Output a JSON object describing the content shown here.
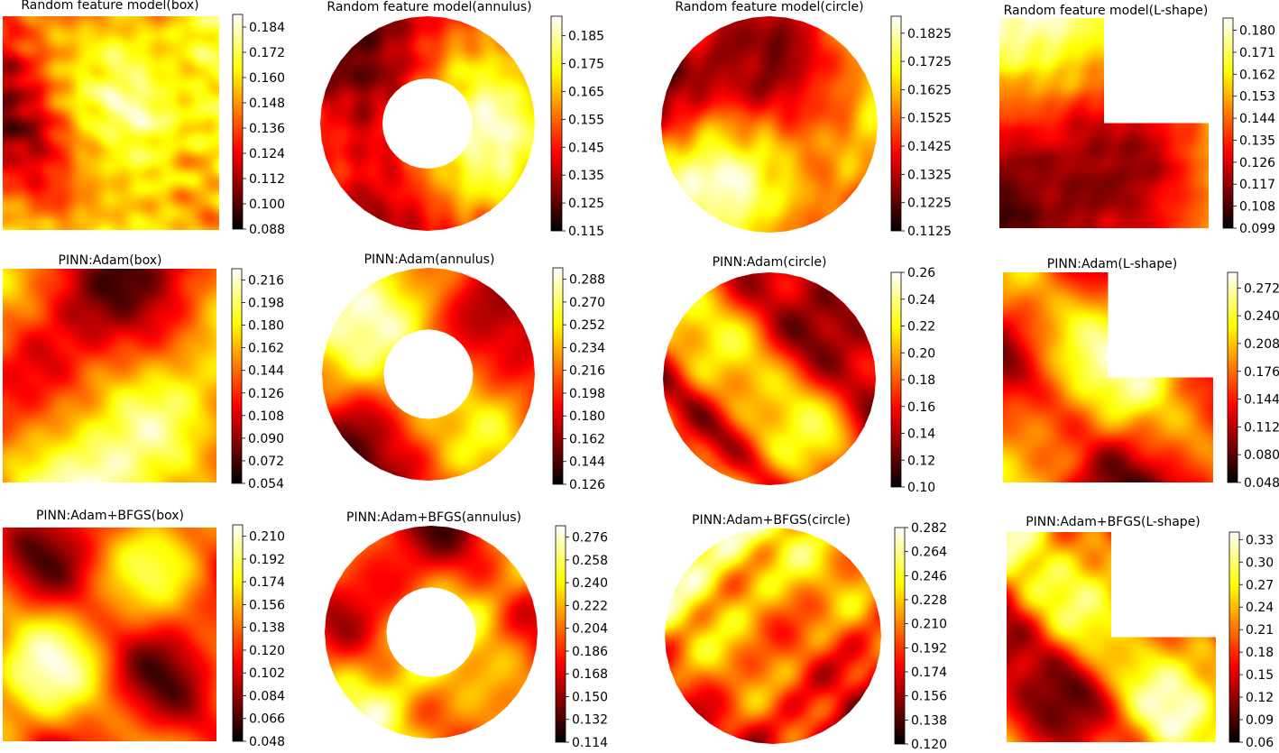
{
  "colors": {
    "background": "#ffffff",
    "text": "#000000",
    "colormap": "hot"
  },
  "chart_data": [
    {
      "type": "heatmap",
      "domain": "box",
      "title": "Random feature model(box)",
      "seed": 11,
      "pattern": "smooth",
      "colorbar_ticks": [
        "0.088",
        "0.100",
        "0.112",
        "0.124",
        "0.136",
        "0.148",
        "0.160",
        "0.172",
        "0.184"
      ],
      "range": [
        0.088,
        0.19
      ]
    },
    {
      "type": "heatmap",
      "domain": "annulus",
      "title": "Random feature model(annulus)",
      "seed": 23,
      "pattern": "smooth",
      "colorbar_ticks": [
        "0.115",
        "0.125",
        "0.135",
        "0.145",
        "0.155",
        "0.165",
        "0.175",
        "0.185"
      ],
      "range": [
        0.115,
        0.192
      ]
    },
    {
      "type": "heatmap",
      "domain": "circle",
      "title": "Random feature model(circle)",
      "seed": 37,
      "pattern": "smooth",
      "colorbar_ticks": [
        "0.1125",
        "0.1225",
        "0.1325",
        "0.1425",
        "0.1525",
        "0.1625",
        "0.1725",
        "0.1825"
      ],
      "range": [
        0.1125,
        0.1885
      ]
    },
    {
      "type": "heatmap",
      "domain": "L-shape",
      "title": "Random feature model(L-shape)",
      "seed": 41,
      "pattern": "smooth",
      "colorbar_ticks": [
        "0.099",
        "0.108",
        "0.117",
        "0.126",
        "0.135",
        "0.144",
        "0.153",
        "0.162",
        "0.171",
        "0.180"
      ],
      "range": [
        0.099,
        0.185
      ]
    },
    {
      "type": "heatmap",
      "domain": "box",
      "title": "PINN:Adam(box)",
      "seed": 53,
      "pattern": "diagonal",
      "colorbar_ticks": [
        "0.054",
        "0.072",
        "0.090",
        "0.108",
        "0.126",
        "0.144",
        "0.162",
        "0.180",
        "0.198",
        "0.216"
      ],
      "range": [
        0.054,
        0.225
      ]
    },
    {
      "type": "heatmap",
      "domain": "annulus",
      "title": "PINN:Adam(annulus)",
      "seed": 61,
      "pattern": "diagonal",
      "colorbar_ticks": [
        "0.126",
        "0.144",
        "0.162",
        "0.180",
        "0.198",
        "0.216",
        "0.234",
        "0.252",
        "0.270",
        "0.288"
      ],
      "range": [
        0.126,
        0.297
      ]
    },
    {
      "type": "heatmap",
      "domain": "circle",
      "title": "PINN:Adam(circle)",
      "seed": 71,
      "pattern": "diagonal",
      "colorbar_ticks": [
        "0.10",
        "0.12",
        "0.14",
        "0.16",
        "0.18",
        "0.20",
        "0.22",
        "0.24",
        "0.26"
      ],
      "range": [
        0.1,
        0.26
      ]
    },
    {
      "type": "heatmap",
      "domain": "L-shape",
      "title": "PINN:Adam(L-shape)",
      "seed": 83,
      "pattern": "diagonal",
      "colorbar_ticks": [
        "0.048",
        "0.080",
        "0.112",
        "0.144",
        "0.176",
        "0.208",
        "0.240",
        "0.272"
      ],
      "range": [
        0.048,
        0.29
      ]
    },
    {
      "type": "heatmap",
      "domain": "box",
      "title": "PINN:Adam+BFGS(box)",
      "seed": 97,
      "pattern": "diagonal",
      "colorbar_ticks": [
        "0.048",
        "0.066",
        "0.084",
        "0.102",
        "0.120",
        "0.138",
        "0.156",
        "0.174",
        "0.192",
        "0.210"
      ],
      "range": [
        0.048,
        0.219
      ]
    },
    {
      "type": "heatmap",
      "domain": "annulus",
      "title": "PINN:Adam+BFGS(annulus)",
      "seed": 101,
      "pattern": "diagonal",
      "colorbar_ticks": [
        "0.114",
        "0.132",
        "0.150",
        "0.168",
        "0.186",
        "0.204",
        "0.222",
        "0.240",
        "0.258",
        "0.276"
      ],
      "range": [
        0.114,
        0.285
      ]
    },
    {
      "type": "heatmap",
      "domain": "circle",
      "title": "PINN:Adam+BFGS(circle)",
      "seed": 113,
      "pattern": "diagonal",
      "colorbar_ticks": [
        "0.120",
        "0.138",
        "0.156",
        "0.174",
        "0.192",
        "0.210",
        "0.228",
        "0.246",
        "0.264",
        "0.282"
      ],
      "range": [
        0.12,
        0.282
      ]
    },
    {
      "type": "heatmap",
      "domain": "L-shape",
      "title": "PINN:Adam+BFGS(L-shape)",
      "seed": 127,
      "pattern": "diagonal",
      "colorbar_ticks": [
        "0.06",
        "0.09",
        "0.12",
        "0.15",
        "0.18",
        "0.21",
        "0.24",
        "0.27",
        "0.30",
        "0.33"
      ],
      "range": [
        0.06,
        0.34
      ]
    }
  ]
}
